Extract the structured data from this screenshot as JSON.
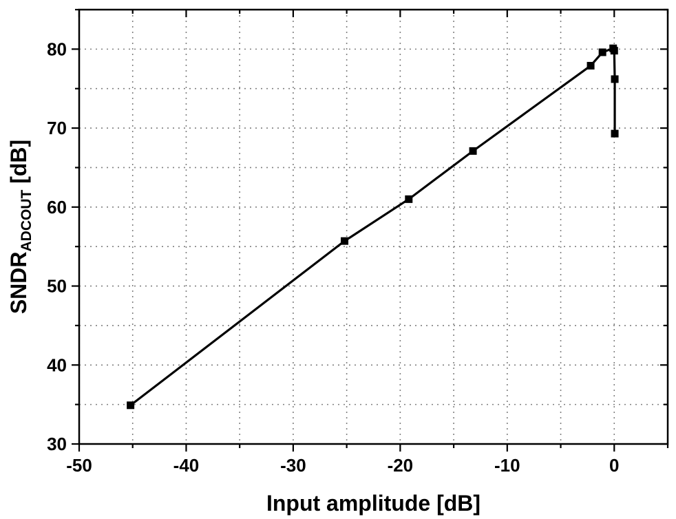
{
  "chart_data": {
    "type": "line",
    "xlabel": "Input amplitude [dB]",
    "ylabel": {
      "main_before": "SNDR",
      "subscript": "ADCOUT",
      "main_after": " [dB]"
    },
    "xlim": [
      -50,
      5
    ],
    "ylim": [
      30,
      85
    ],
    "x_ticks": [
      -50,
      -40,
      -30,
      -20,
      -10,
      0
    ],
    "y_ticks": [
      30,
      40,
      50,
      60,
      70,
      80
    ],
    "x_minor_step": 5,
    "y_minor_step": 5,
    "grid": true,
    "legend": "none",
    "colors": {
      "line": "#000000",
      "marker": "#000000",
      "grid": "#7f7f7f"
    },
    "series": [
      {
        "marker": "square",
        "points": [
          {
            "x": -45.2,
            "y": 34.9
          },
          {
            "x": -25.2,
            "y": 55.7
          },
          {
            "x": -19.2,
            "y": 61.0
          },
          {
            "x": -13.2,
            "y": 67.1
          },
          {
            "x": -2.2,
            "y": 77.9
          },
          {
            "x": -1.1,
            "y": 79.6
          },
          {
            "x": -0.1,
            "y": 80.1
          },
          {
            "x": 0.0,
            "y": 79.8
          },
          {
            "x": 0.05,
            "y": 76.2
          },
          {
            "x": 0.05,
            "y": 69.3
          }
        ]
      }
    ]
  }
}
